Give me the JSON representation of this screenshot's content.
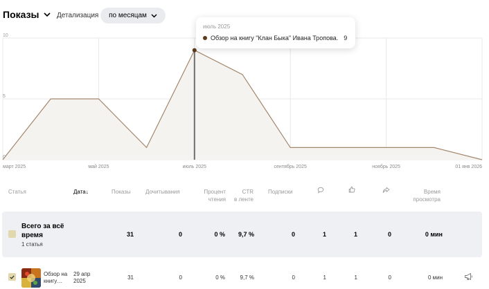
{
  "header": {
    "metric_label": "Показы",
    "detail_label": "Детализация",
    "period_label": "по месяцам"
  },
  "tooltip": {
    "date": "июль 2025",
    "series_name": "Обзор на книгу \"Клан Быка\" Ивана Тропова.",
    "value": "9"
  },
  "chart_data": {
    "type": "area",
    "title": "",
    "xlabel": "",
    "ylabel": "",
    "ylim": [
      0,
      10
    ],
    "y_ticks": [
      "0",
      "5",
      "10"
    ],
    "x_tick_labels": [
      "март 2025",
      "май 2025",
      "июль 2025",
      "сентябрь 2025",
      "ноябрь 2025",
      "01 янв 2026"
    ],
    "grid": true,
    "x": [
      "2025-03-01",
      "2025-04-01",
      "2025-05-01",
      "2025-06-01",
      "2025-07-01",
      "2025-08-01",
      "2025-09-01",
      "2025-10-01",
      "2025-11-01",
      "2025-12-01",
      "2026-01-01"
    ],
    "series": [
      {
        "values": [
          0,
          5,
          5,
          1,
          9,
          7,
          1,
          1,
          1,
          1,
          0
        ]
      }
    ],
    "highlight_x": "2025-07-01",
    "colors": {
      "line": "#a3876d",
      "fill": "#f5f3ef",
      "cursor": "#6e6e6e",
      "point": "#5b3a1a",
      "grid": "#e8e8e8"
    }
  },
  "table": {
    "headers": {
      "article": "Статья",
      "date": "Дата",
      "sort_arrow": "↓",
      "views": "Показы",
      "reads": "Дочитывания",
      "percent_1": "Процент",
      "percent_2": "чтения",
      "ctr_1": "CTR",
      "ctr_2": "в ленте",
      "subs": "Подписки",
      "comments_icon": "comment-icon",
      "likes_icon": "like-icon",
      "reposts_icon": "repost-icon",
      "time_1": "Время",
      "time_2": "просмотра"
    },
    "total": {
      "title": "Всего за всё время",
      "subtitle": "1 статья",
      "views": "31",
      "reads": "0",
      "percent": "0 %",
      "ctr": "9,7 %",
      "subs": "0",
      "comments": "1",
      "likes": "1",
      "reposts": "0",
      "time": "0 мин"
    },
    "rows": [
      {
        "title": "Обзор на книгу…",
        "date": "29 апр 2025",
        "views": "31",
        "reads": "0",
        "percent": "0 %",
        "ctr": "9,7 %",
        "subs": "0",
        "comments": "1",
        "likes": "1",
        "reposts": "0",
        "time": "0 мин",
        "action_icon": "megaphone-icon"
      }
    ]
  }
}
